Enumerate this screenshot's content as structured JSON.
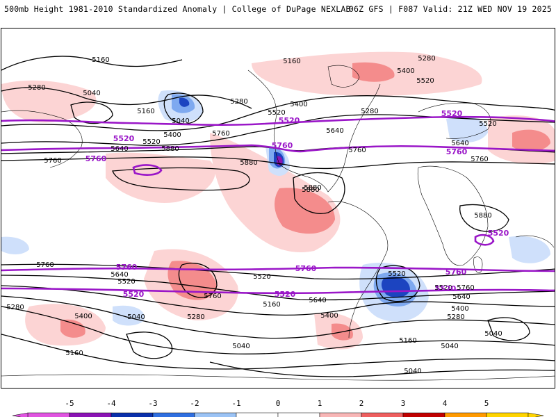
{
  "header": {
    "title": "500mb Height 1981-2010 Standardized Anomaly | College of DuPage NEXLAB",
    "run_info": "06Z GFS | F087 Valid: 21Z WED NOV 19 2025"
  },
  "colorbar": {
    "ticks": [
      "-5",
      "-4",
      "-3",
      "-2",
      "-1",
      "0",
      "1",
      "2",
      "3",
      "4",
      "5"
    ],
    "colors": [
      "#e055e0",
      "#8a14b4",
      "#0a2faa",
      "#2f6fe0",
      "#9bc3f5",
      "#ffffff",
      "#ffffff",
      "#f8b6b6",
      "#ee5f5f",
      "#c00000",
      "#ff9a00",
      "#ffd400"
    ]
  },
  "contour_labels": [
    "5160",
    "5280",
    "5040",
    "5280",
    "5160",
    "5040",
    "5400",
    "5520",
    "5640",
    "5760",
    "5880",
    "5160",
    "5400",
    "5280",
    "5520",
    "5400",
    "5520",
    "5280",
    "5640",
    "5760",
    "5880",
    "5520",
    "5640",
    "5760",
    "5760",
    "5880",
    "5880",
    "5880",
    "5760",
    "5640",
    "5520",
    "5400",
    "5280",
    "5040",
    "5160",
    "5520",
    "5760",
    "5640",
    "5400",
    "5520",
    "5160",
    "5040",
    "5280",
    "5040",
    "5520",
    "5640",
    "5760",
    "5400",
    "5280",
    "5160",
    "5040",
    "5040"
  ],
  "height_labels": [
    "5520",
    "5760",
    "5520",
    "5760",
    "5760",
    "5520",
    "5760",
    "5520",
    "5760",
    "5520",
    "5760",
    "5520",
    "5520"
  ],
  "colors": {
    "contour": "#000000",
    "height_line": "#9a16c8",
    "coast": "#000000",
    "pos1": "#fcd4d4",
    "pos2": "#f48c8c",
    "neg1": "#cfe0fb",
    "neg2": "#7ea9f0",
    "neg3": "#1c44c0"
  }
}
